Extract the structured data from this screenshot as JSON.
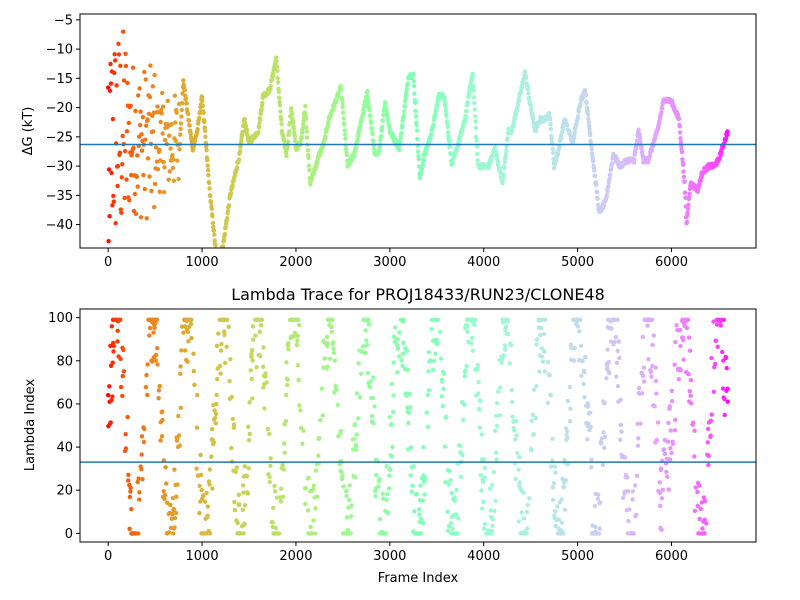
{
  "chart_data": [
    {
      "type": "scatter",
      "title": "",
      "xlabel": "",
      "ylabel": "ΔG (kT)",
      "xlim": [
        -300,
        6900
      ],
      "ylim": [
        -44,
        -4
      ],
      "xticks": [
        0,
        1000,
        2000,
        3000,
        4000,
        5000,
        6000
      ],
      "yticks": [
        -40,
        -35,
        -30,
        -25,
        -20,
        -15,
        -10,
        -5
      ],
      "hline": -26.3,
      "hline_color": "#1f77b4",
      "colormap": "rainbow",
      "x_max_frame": 6600,
      "trace_keypoints": [
        [
          760,
          -27
        ],
        [
          800,
          -15.5
        ],
        [
          900,
          -27
        ],
        [
          950,
          -24
        ],
        [
          1000,
          -18
        ],
        [
          1080,
          -34
        ],
        [
          1150,
          -45
        ],
        [
          1220,
          -44
        ],
        [
          1300,
          -35
        ],
        [
          1400,
          -28
        ],
        [
          1450,
          -22
        ],
        [
          1500,
          -26
        ],
        [
          1600,
          -24
        ],
        [
          1650,
          -18
        ],
        [
          1720,
          -17
        ],
        [
          1790,
          -11.5
        ],
        [
          1850,
          -24
        ],
        [
          1900,
          -28
        ],
        [
          1950,
          -20
        ],
        [
          2000,
          -27
        ],
        [
          2050,
          -26
        ],
        [
          2100,
          -20
        ],
        [
          2150,
          -33
        ],
        [
          2250,
          -28
        ],
        [
          2300,
          -26
        ],
        [
          2350,
          -22
        ],
        [
          2480,
          -16.5
        ],
        [
          2550,
          -30
        ],
        [
          2620,
          -28
        ],
        [
          2700,
          -22
        ],
        [
          2760,
          -17.5
        ],
        [
          2840,
          -28
        ],
        [
          2880,
          -28
        ],
        [
          2950,
          -19
        ],
        [
          3000,
          -24
        ],
        [
          3100,
          -27
        ],
        [
          3200,
          -14.5
        ],
        [
          3250,
          -14.5
        ],
        [
          3320,
          -32
        ],
        [
          3370,
          -28
        ],
        [
          3450,
          -24
        ],
        [
          3520,
          -18
        ],
        [
          3580,
          -18
        ],
        [
          3660,
          -30
        ],
        [
          3730,
          -26
        ],
        [
          3800,
          -22
        ],
        [
          3880,
          -14
        ],
        [
          3940,
          -30
        ],
        [
          4050,
          -30
        ],
        [
          4120,
          -27
        ],
        [
          4160,
          -30
        ],
        [
          4200,
          -33
        ],
        [
          4260,
          -24
        ],
        [
          4300,
          -24
        ],
        [
          4440,
          -14
        ],
        [
          4500,
          -20
        ],
        [
          4550,
          -24
        ],
        [
          4600,
          -22
        ],
        [
          4650,
          -22
        ],
        [
          4700,
          -21
        ],
        [
          4750,
          -30
        ],
        [
          4800,
          -27
        ],
        [
          4860,
          -22
        ],
        [
          4950,
          -26
        ],
        [
          5030,
          -19
        ],
        [
          5080,
          -17
        ],
        [
          5150,
          -27
        ],
        [
          5230,
          -38
        ],
        [
          5300,
          -36
        ],
        [
          5380,
          -28
        ],
        [
          5450,
          -30
        ],
        [
          5530,
          -29
        ],
        [
          5600,
          -29
        ],
        [
          5650,
          -24
        ],
        [
          5700,
          -29
        ],
        [
          5750,
          -29
        ],
        [
          5850,
          -24
        ],
        [
          5920,
          -18.5
        ],
        [
          6000,
          -19
        ],
        [
          6080,
          -22
        ],
        [
          6140,
          -33
        ],
        [
          6160,
          -40
        ],
        [
          6200,
          -33
        ],
        [
          6280,
          -34
        ],
        [
          6330,
          -31
        ],
        [
          6400,
          -30
        ],
        [
          6450,
          -30
        ],
        [
          6500,
          -29
        ],
        [
          6600,
          -24
        ]
      ],
      "early_scatter_range": [
        -44,
        -5
      ]
    },
    {
      "type": "scatter",
      "title": "Lambda Trace for PROJ18433/RUN23/CLONE48",
      "xlabel": "Frame Index",
      "ylabel": "Lambda Index",
      "xlim": [
        -300,
        6900
      ],
      "ylim": [
        -4,
        104
      ],
      "xticks": [
        0,
        1000,
        2000,
        3000,
        4000,
        5000,
        6000
      ],
      "yticks": [
        0,
        20,
        40,
        60,
        80,
        100
      ],
      "hline": 33,
      "hline_color": "#1f77b4",
      "colormap": "rainbow",
      "x_max_frame": 6600,
      "value_range": [
        0,
        99
      ],
      "high_band_x": [
        [
          4990,
          5150
        ],
        [
          5900,
          6150
        ]
      ],
      "high_band_y": [
        60,
        99
      ]
    }
  ]
}
